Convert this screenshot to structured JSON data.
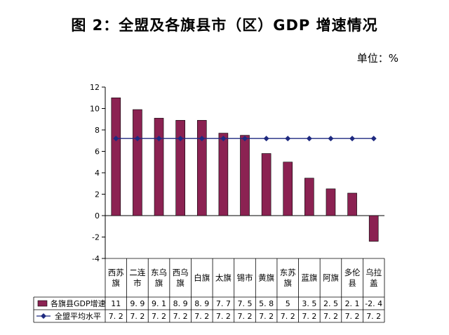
{
  "title": "图 2：全盟及各旗县市（区）GDP 增速情况",
  "unit_label": "单位：%",
  "colors": {
    "bar": "#8b2252",
    "line": "#1f2a80",
    "marker": "#1f2a80"
  },
  "chart_data": {
    "type": "bar",
    "categories": [
      [
        "西苏",
        "旗"
      ],
      [
        "二连",
        "市"
      ],
      [
        "东乌",
        "旗"
      ],
      [
        "西乌",
        "旗"
      ],
      [
        "白旗"
      ],
      [
        "太旗"
      ],
      [
        "锡市"
      ],
      [
        "黄旗"
      ],
      [
        "东苏",
        "旗"
      ],
      [
        "蓝旗"
      ],
      [
        "阿旗"
      ],
      [
        "多伦",
        "县"
      ],
      [
        "乌拉",
        "盖"
      ]
    ],
    "series": [
      {
        "name": "各旗县GDP增速",
        "type": "bar",
        "values": [
          11,
          9.9,
          9.1,
          8.9,
          8.9,
          7.7,
          7.5,
          5.8,
          5,
          3.5,
          2.5,
          2.1,
          -2.4
        ],
        "labels": [
          "11",
          "9. 9",
          "9. 1",
          "8. 9",
          "8. 9",
          "7. 7",
          "7. 5",
          "5. 8",
          "5",
          "3. 5",
          "2. 5",
          "2. 1",
          "-2. 4"
        ]
      },
      {
        "name": "全盟平均水平",
        "type": "line",
        "values": [
          7.2,
          7.2,
          7.2,
          7.2,
          7.2,
          7.2,
          7.2,
          7.2,
          7.2,
          7.2,
          7.2,
          7.2,
          7.2
        ],
        "labels": [
          "7. 2",
          "7. 2",
          "7. 2",
          "7. 2",
          "7. 2",
          "7. 2",
          "7. 2",
          "7. 2",
          "7. 2",
          "7. 2",
          "7. 2",
          "7. 2",
          "7. 2"
        ]
      }
    ],
    "ylim": [
      -4,
      12
    ],
    "yticks": [
      -4,
      -2,
      0,
      2,
      4,
      6,
      8,
      10,
      12
    ],
    "ytick_labels": [
      "-4",
      "-2",
      "0",
      "2",
      "4",
      "6",
      "8",
      "10",
      "12"
    ],
    "grid": false,
    "legend": "data-table"
  }
}
